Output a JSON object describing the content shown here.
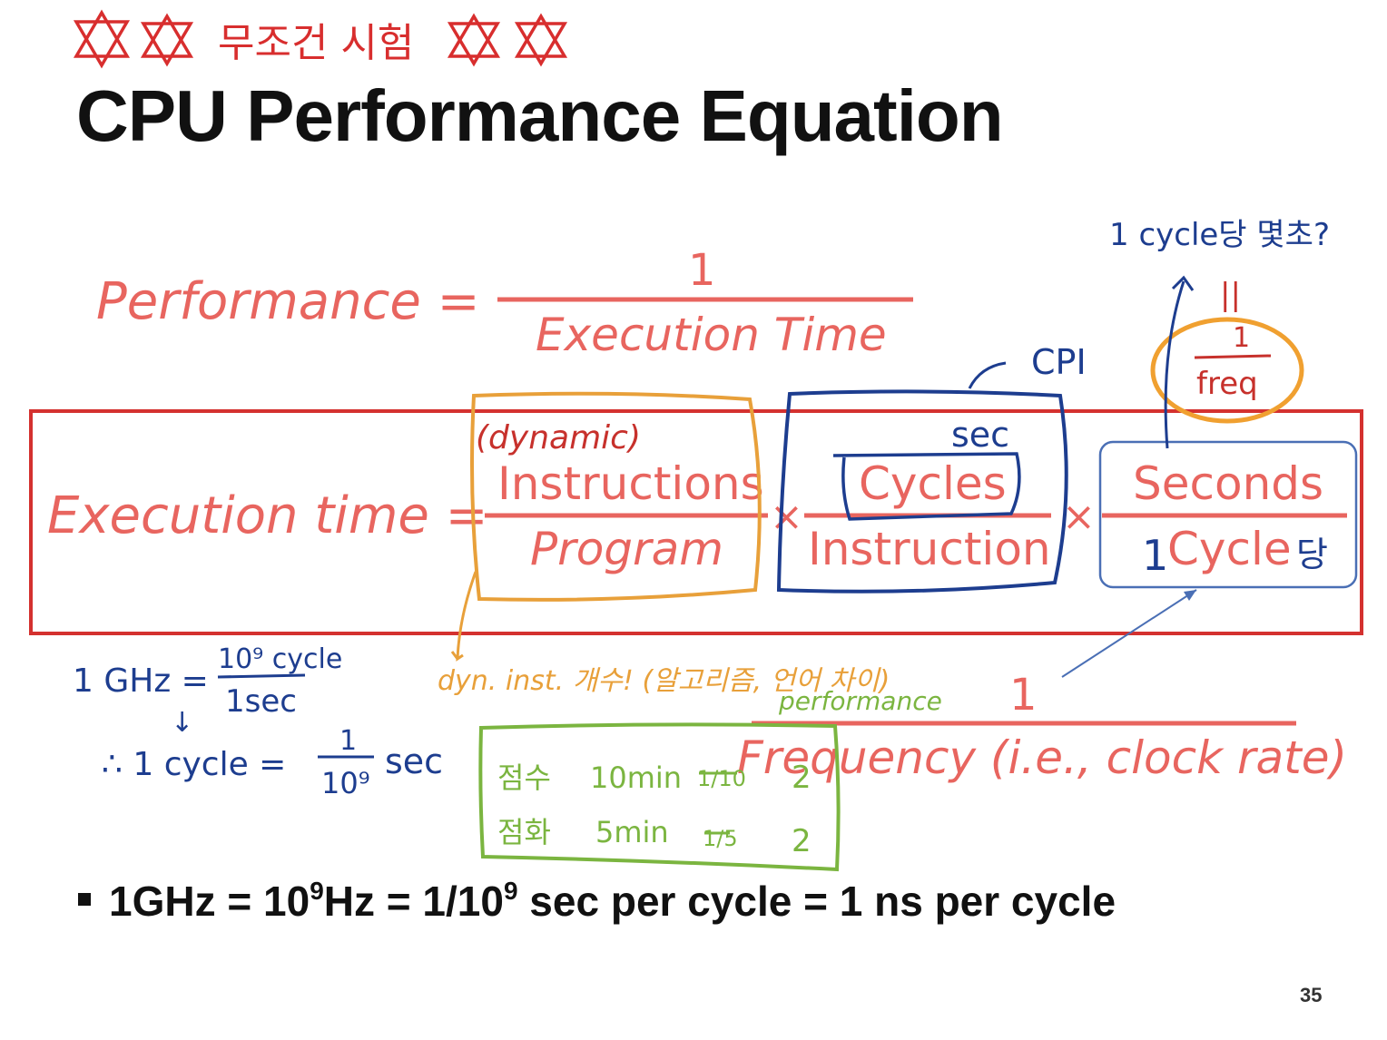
{
  "slide": {
    "title": "CPU Performance Equation",
    "page_number": "35",
    "colors": {
      "formula": "#e8655f",
      "box_red": "#d4312f",
      "ink_red": "#d82e2e",
      "ink_orange": "#e8a03a",
      "ink_blue": "#1d3d8f",
      "ink_green": "#7bb540",
      "box_blue_thin": "#4a6fb5"
    }
  },
  "performance_eq": {
    "lhs": "Performance =",
    "numerator": "1",
    "denominator": "Execution Time"
  },
  "execution_eq": {
    "lhs": "Execution time =",
    "term1": {
      "numerator": "Instructions",
      "denominator": "Program"
    },
    "term2": {
      "numerator": "Cycles",
      "denominator": "Instruction"
    },
    "term3": {
      "numerator": "Seconds",
      "denominator": "Cycle"
    },
    "operator": "×"
  },
  "frequency_eq": {
    "numerator": "1",
    "denominator": "Frequency (i.e., clock rate)"
  },
  "bullet": {
    "part1": "1GHz = 10",
    "exp1": "9",
    "part2": "Hz = 1/10",
    "exp2": "9",
    "part3": " sec per cycle = 1 ns per cycle"
  },
  "annotations": {
    "top_exam_note": "무조건 시험",
    "per_cycle_question": "1 cycle당 몇초?",
    "cpi_label": "CPI",
    "freq_equals": "||",
    "freq_fraction_num": "1",
    "freq_fraction_den": "freq",
    "dynamic_label": "(dynamic)",
    "sec_label": "sec",
    "one_prefix": "1",
    "per_suffix": "당",
    "dyn_inst_note": "dyn. inst. 개수! (알고리즘, 언어 차이)",
    "performance_note": "performance",
    "ghz_lhs": "1 GHz =",
    "ghz_num": "10⁹ cycle",
    "ghz_den": "1sec",
    "arrow_down": "↓",
    "therefore_lhs": "∴ 1 cycle =",
    "therefore_num": "1",
    "therefore_den": "10⁹",
    "therefore_unit": "sec",
    "green_row1": [
      "점수",
      "10min",
      "1/10",
      "2"
    ],
    "green_row2": [
      "점화",
      "5min",
      "1/5",
      "2"
    ]
  }
}
